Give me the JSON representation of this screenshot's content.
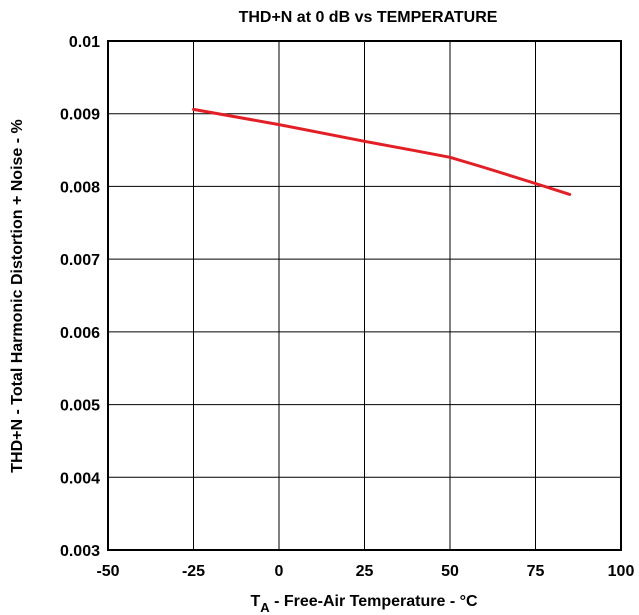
{
  "chart_data": {
    "type": "line",
    "title": "THD+N at 0 dB vs TEMPERATURE",
    "xlabel_main": "T",
    "xlabel_sub": "A",
    "xlabel_rest": " - Free-Air Temperature - °C",
    "ylabel": "THD+N - Total Harmonic Distortion + Noise - %",
    "xlim": [
      -50,
      100
    ],
    "ylim": [
      0.003,
      0.01
    ],
    "x_ticks": [
      -50,
      -25,
      0,
      25,
      50,
      75,
      100
    ],
    "x_tick_labels": [
      "-50",
      "-25",
      "0",
      "25",
      "50",
      "75",
      "100"
    ],
    "y_ticks": [
      0.003,
      0.004,
      0.005,
      0.006,
      0.007,
      0.008,
      0.009,
      0.01
    ],
    "y_tick_labels": [
      "0.003",
      "0.004",
      "0.005",
      "0.006",
      "0.007",
      "0.008",
      "0.009",
      "0.01"
    ],
    "grid": true,
    "series": [
      {
        "color": "#e31e24",
        "x": [
          -25,
          0,
          25,
          40,
          50,
          60,
          75,
          85
        ],
        "y": [
          0.00906,
          0.00885,
          0.00862,
          0.00849,
          0.0084,
          0.00826,
          0.00804,
          0.00789
        ]
      }
    ]
  }
}
